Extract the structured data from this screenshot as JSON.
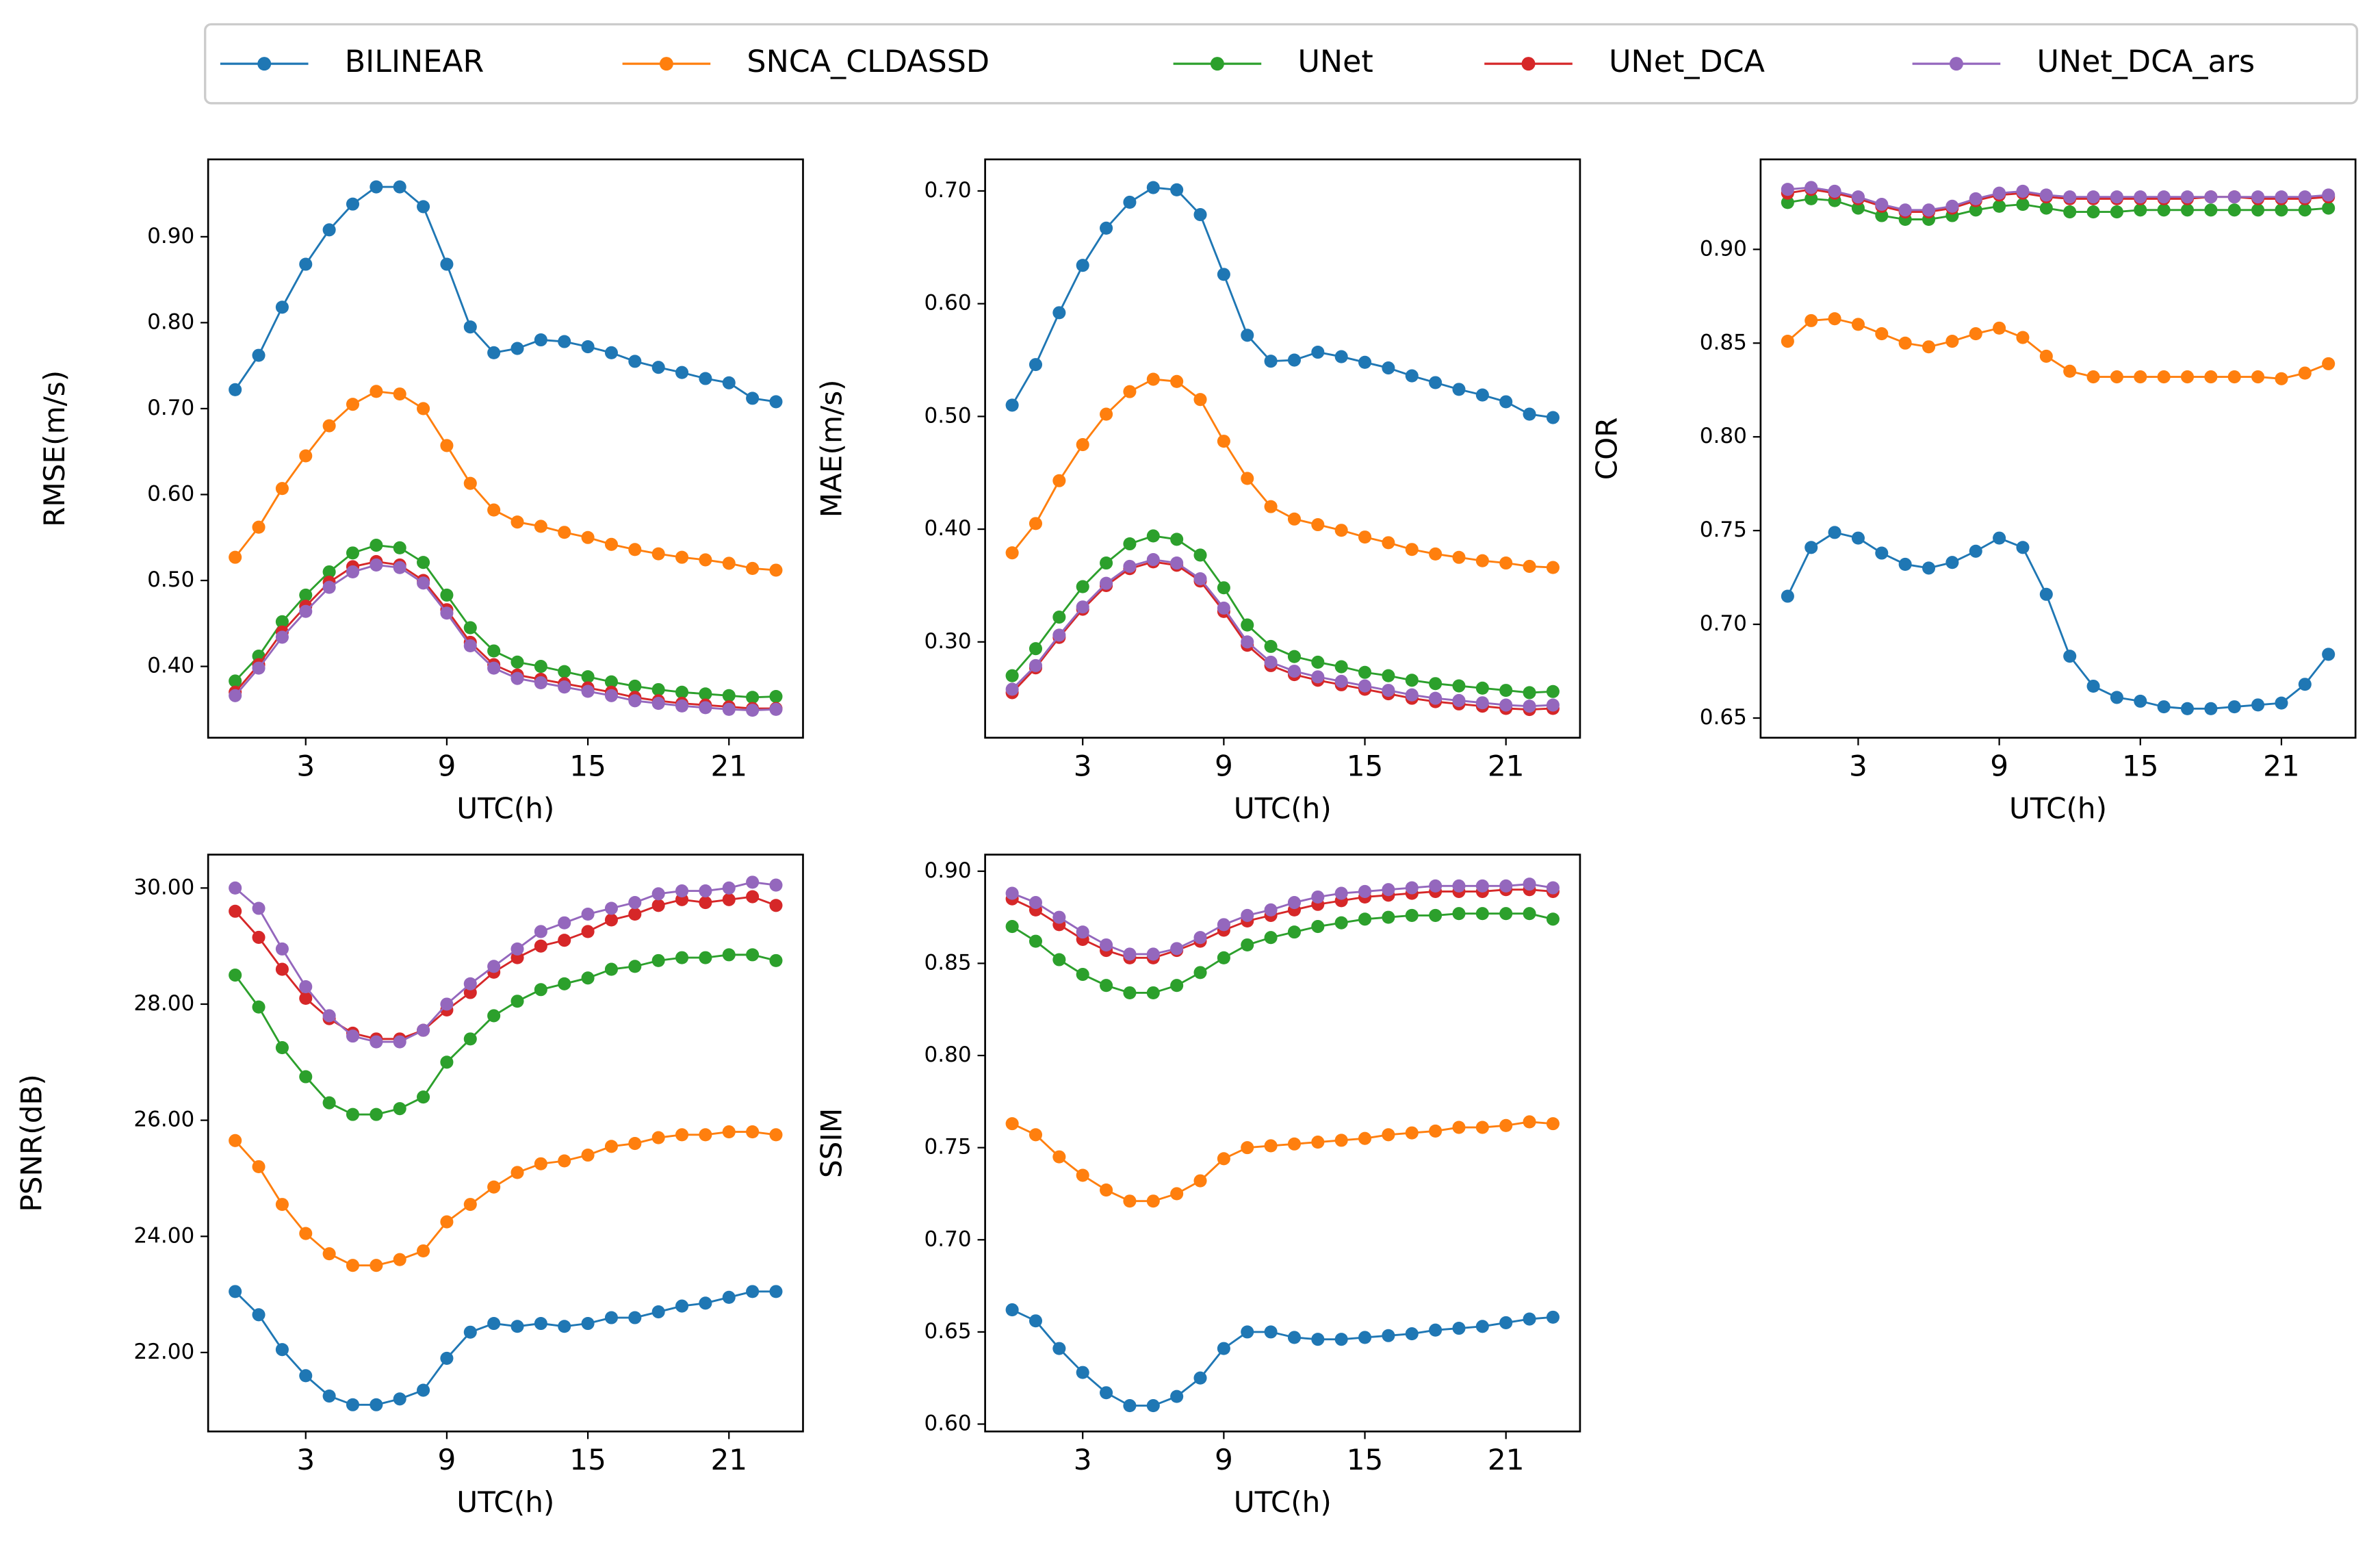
{
  "chart_data": [
    {
      "type": "line",
      "xlabel": "UTC(h)",
      "ylabel": "RMSE(m/s)",
      "legend": "top",
      "x": [
        0,
        1,
        2,
        3,
        4,
        5,
        6,
        7,
        8,
        9,
        10,
        11,
        12,
        13,
        14,
        15,
        16,
        17,
        18,
        19,
        20,
        21,
        22,
        23
      ],
      "xlim": [
        -1.15,
        24.15
      ],
      "xticks": [
        3,
        9,
        15,
        21
      ],
      "ylim": [
        0.317,
        0.99
      ],
      "yticks": [
        {
          "value": 0.4,
          "label": "0.40"
        },
        {
          "value": 0.5,
          "label": "0.50"
        },
        {
          "value": 0.6,
          "label": "0.60"
        },
        {
          "value": 0.7,
          "label": "0.70"
        },
        {
          "value": 0.8,
          "label": "0.80"
        },
        {
          "value": 0.9,
          "label": "0.90"
        }
      ],
      "series": [
        {
          "name": "BILINEAR",
          "color": "#1f77b4",
          "values": [
            0.722,
            0.762,
            0.818,
            0.868,
            0.908,
            0.938,
            0.958,
            0.958,
            0.935,
            0.868,
            0.795,
            0.765,
            0.77,
            0.78,
            0.778,
            0.772,
            0.765,
            0.755,
            0.748,
            0.742,
            0.735,
            0.73,
            0.712,
            0.708
          ]
        },
        {
          "name": "SNCA_CLDASSD",
          "color": "#ff7f0e",
          "values": [
            0.527,
            0.562,
            0.607,
            0.645,
            0.68,
            0.705,
            0.72,
            0.717,
            0.7,
            0.657,
            0.613,
            0.582,
            0.568,
            0.563,
            0.556,
            0.55,
            0.542,
            0.536,
            0.531,
            0.527,
            0.524,
            0.52,
            0.514,
            0.512
          ]
        },
        {
          "name": "UNet",
          "color": "#2ca02c",
          "values": [
            0.383,
            0.412,
            0.452,
            0.483,
            0.51,
            0.532,
            0.541,
            0.538,
            0.521,
            0.483,
            0.445,
            0.418,
            0.405,
            0.4,
            0.394,
            0.388,
            0.382,
            0.377,
            0.373,
            0.37,
            0.368,
            0.366,
            0.364,
            0.365
          ]
        },
        {
          "name": "UNet_DCA",
          "color": "#d62728",
          "values": [
            0.37,
            0.402,
            0.44,
            0.47,
            0.498,
            0.516,
            0.522,
            0.518,
            0.5,
            0.466,
            0.428,
            0.402,
            0.39,
            0.385,
            0.38,
            0.375,
            0.37,
            0.364,
            0.36,
            0.357,
            0.355,
            0.353,
            0.351,
            0.351
          ]
        },
        {
          "name": "UNet_DCA_ars",
          "color": "#9467bd",
          "values": [
            0.366,
            0.398,
            0.434,
            0.464,
            0.492,
            0.51,
            0.518,
            0.515,
            0.497,
            0.462,
            0.424,
            0.398,
            0.386,
            0.381,
            0.376,
            0.371,
            0.366,
            0.36,
            0.357,
            0.354,
            0.352,
            0.35,
            0.349,
            0.35
          ]
        }
      ]
    },
    {
      "type": "line",
      "xlabel": "UTC(h)",
      "ylabel": "MAE(m/s)",
      "x": [
        0,
        1,
        2,
        3,
        4,
        5,
        6,
        7,
        8,
        9,
        10,
        11,
        12,
        13,
        14,
        15,
        16,
        17,
        18,
        19,
        20,
        21,
        22,
        23
      ],
      "xlim": [
        -1.15,
        24.15
      ],
      "xticks": [
        3,
        9,
        15,
        21
      ],
      "ylim": [
        0.215,
        0.728
      ],
      "yticks": [
        {
          "value": 0.3,
          "label": "0.30"
        },
        {
          "value": 0.4,
          "label": "0.40"
        },
        {
          "value": 0.5,
          "label": "0.50"
        },
        {
          "value": 0.6,
          "label": "0.60"
        },
        {
          "value": 0.7,
          "label": "0.70"
        }
      ],
      "series": [
        {
          "name": "BILINEAR",
          "color": "#1f77b4",
          "values": [
            0.51,
            0.546,
            0.592,
            0.634,
            0.667,
            0.69,
            0.703,
            0.701,
            0.679,
            0.626,
            0.572,
            0.549,
            0.55,
            0.557,
            0.553,
            0.548,
            0.543,
            0.536,
            0.53,
            0.524,
            0.519,
            0.513,
            0.502,
            0.499
          ]
        },
        {
          "name": "SNCA_CLDASSD",
          "color": "#ff7f0e",
          "values": [
            0.379,
            0.405,
            0.443,
            0.475,
            0.502,
            0.522,
            0.533,
            0.531,
            0.515,
            0.478,
            0.445,
            0.42,
            0.409,
            0.404,
            0.399,
            0.393,
            0.388,
            0.382,
            0.378,
            0.375,
            0.372,
            0.37,
            0.367,
            0.366
          ]
        },
        {
          "name": "UNet",
          "color": "#2ca02c",
          "values": [
            0.27,
            0.294,
            0.322,
            0.349,
            0.37,
            0.387,
            0.394,
            0.391,
            0.377,
            0.348,
            0.315,
            0.296,
            0.287,
            0.282,
            0.278,
            0.273,
            0.27,
            0.266,
            0.263,
            0.261,
            0.259,
            0.257,
            0.255,
            0.256
          ]
        },
        {
          "name": "UNet_DCA",
          "color": "#d62728",
          "values": [
            0.255,
            0.277,
            0.304,
            0.329,
            0.35,
            0.365,
            0.371,
            0.368,
            0.354,
            0.327,
            0.297,
            0.279,
            0.271,
            0.266,
            0.262,
            0.258,
            0.254,
            0.25,
            0.247,
            0.245,
            0.243,
            0.241,
            0.24,
            0.241
          ]
        },
        {
          "name": "UNet_DCA_ars",
          "color": "#9467bd",
          "values": [
            0.258,
            0.279,
            0.306,
            0.331,
            0.352,
            0.367,
            0.373,
            0.37,
            0.356,
            0.33,
            0.3,
            0.282,
            0.274,
            0.269,
            0.265,
            0.261,
            0.257,
            0.253,
            0.25,
            0.248,
            0.246,
            0.244,
            0.243,
            0.244
          ]
        }
      ]
    },
    {
      "type": "line",
      "xlabel": "UTC(h)",
      "ylabel": "COR",
      "x": [
        0,
        1,
        2,
        3,
        4,
        5,
        6,
        7,
        8,
        9,
        10,
        11,
        12,
        13,
        14,
        15,
        16,
        17,
        18,
        19,
        20,
        21,
        22,
        23
      ],
      "xlim": [
        -1.15,
        24.15
      ],
      "xticks": [
        3,
        9,
        15,
        21
      ],
      "ylim": [
        0.6395,
        0.948
      ],
      "yticks": [
        {
          "value": 0.65,
          "label": "0.65"
        },
        {
          "value": 0.7,
          "label": "0.70"
        },
        {
          "value": 0.75,
          "label": "0.75"
        },
        {
          "value": 0.8,
          "label": "0.80"
        },
        {
          "value": 0.85,
          "label": "0.85"
        },
        {
          "value": 0.9,
          "label": "0.90"
        }
      ],
      "series": [
        {
          "name": "BILINEAR",
          "color": "#1f77b4",
          "values": [
            0.715,
            0.741,
            0.749,
            0.746,
            0.738,
            0.732,
            0.73,
            0.733,
            0.739,
            0.746,
            0.741,
            0.716,
            0.683,
            0.667,
            0.661,
            0.659,
            0.656,
            0.655,
            0.655,
            0.656,
            0.657,
            0.658,
            0.668,
            0.684
          ]
        },
        {
          "name": "SNCA_CLDASSD",
          "color": "#ff7f0e",
          "values": [
            0.851,
            0.862,
            0.863,
            0.86,
            0.855,
            0.85,
            0.848,
            0.851,
            0.855,
            0.858,
            0.853,
            0.843,
            0.835,
            0.832,
            0.832,
            0.832,
            0.832,
            0.832,
            0.832,
            0.832,
            0.832,
            0.831,
            0.834,
            0.839
          ]
        },
        {
          "name": "UNet",
          "color": "#2ca02c",
          "values": [
            0.925,
            0.927,
            0.926,
            0.922,
            0.918,
            0.916,
            0.916,
            0.918,
            0.921,
            0.923,
            0.924,
            0.922,
            0.92,
            0.92,
            0.92,
            0.921,
            0.921,
            0.921,
            0.921,
            0.921,
            0.921,
            0.921,
            0.921,
            0.922
          ]
        },
        {
          "name": "UNet_DCA",
          "color": "#d62728",
          "values": [
            0.93,
            0.932,
            0.93,
            0.927,
            0.923,
            0.92,
            0.92,
            0.922,
            0.926,
            0.929,
            0.93,
            0.928,
            0.927,
            0.927,
            0.927,
            0.927,
            0.927,
            0.927,
            0.928,
            0.928,
            0.927,
            0.927,
            0.927,
            0.928
          ]
        },
        {
          "name": "UNet_DCA_ars",
          "color": "#9467bd",
          "values": [
            0.932,
            0.933,
            0.931,
            0.928,
            0.924,
            0.921,
            0.921,
            0.923,
            0.927,
            0.93,
            0.931,
            0.929,
            0.928,
            0.928,
            0.928,
            0.928,
            0.928,
            0.928,
            0.928,
            0.928,
            0.928,
            0.928,
            0.928,
            0.929
          ]
        }
      ]
    },
    {
      "type": "line",
      "xlabel": "UTC(h)",
      "ylabel": "PSNR(dB)",
      "x": [
        0,
        1,
        2,
        3,
        4,
        5,
        6,
        7,
        8,
        9,
        10,
        11,
        12,
        13,
        14,
        15,
        16,
        17,
        18,
        19,
        20,
        21,
        22,
        23
      ],
      "xlim": [
        -1.15,
        24.15
      ],
      "xticks": [
        3,
        9,
        15,
        21
      ],
      "ylim": [
        20.64,
        30.575
      ],
      "yticks": [
        {
          "value": 22,
          "label": "22.00"
        },
        {
          "value": 24,
          "label": "24.00"
        },
        {
          "value": 26,
          "label": "26.00"
        },
        {
          "value": 28,
          "label": "28.00"
        },
        {
          "value": 30,
          "label": "30.00"
        }
      ],
      "series": [
        {
          "name": "BILINEAR",
          "color": "#1f77b4",
          "values": [
            23.05,
            22.65,
            22.05,
            21.6,
            21.25,
            21.1,
            21.1,
            21.2,
            21.35,
            21.9,
            22.35,
            22.5,
            22.45,
            22.5,
            22.45,
            22.5,
            22.6,
            22.6,
            22.7,
            22.8,
            22.85,
            22.95,
            23.05,
            23.05
          ]
        },
        {
          "name": "SNCA_CLDASSD",
          "color": "#ff7f0e",
          "values": [
            25.65,
            25.2,
            24.55,
            24.05,
            23.7,
            23.5,
            23.5,
            23.6,
            23.75,
            24.25,
            24.55,
            24.85,
            25.1,
            25.25,
            25.3,
            25.4,
            25.55,
            25.6,
            25.7,
            25.75,
            25.75,
            25.8,
            25.8,
            25.75
          ]
        },
        {
          "name": "UNet",
          "color": "#2ca02c",
          "values": [
            28.5,
            27.95,
            27.25,
            26.75,
            26.3,
            26.1,
            26.1,
            26.2,
            26.4,
            27.0,
            27.4,
            27.8,
            28.05,
            28.25,
            28.35,
            28.45,
            28.6,
            28.65,
            28.75,
            28.8,
            28.8,
            28.85,
            28.85,
            28.75
          ]
        },
        {
          "name": "UNet_DCA",
          "color": "#d62728",
          "values": [
            29.6,
            29.15,
            28.6,
            28.1,
            27.75,
            27.5,
            27.4,
            27.4,
            27.55,
            27.9,
            28.2,
            28.55,
            28.8,
            29.0,
            29.1,
            29.25,
            29.45,
            29.55,
            29.7,
            29.8,
            29.75,
            29.8,
            29.85,
            29.7
          ]
        },
        {
          "name": "UNet_DCA_ars",
          "color": "#9467bd",
          "values": [
            30.0,
            29.65,
            28.95,
            28.3,
            27.8,
            27.45,
            27.35,
            27.35,
            27.55,
            28.0,
            28.35,
            28.65,
            28.95,
            29.25,
            29.4,
            29.55,
            29.65,
            29.75,
            29.9,
            29.95,
            29.95,
            30.0,
            30.1,
            30.05
          ]
        }
      ]
    },
    {
      "type": "line",
      "xlabel": "UTC(h)",
      "ylabel": "SSIM",
      "x": [
        0,
        1,
        2,
        3,
        4,
        5,
        6,
        7,
        8,
        9,
        10,
        11,
        12,
        13,
        14,
        15,
        16,
        17,
        18,
        19,
        20,
        21,
        22,
        23
      ],
      "xlim": [
        -1.15,
        24.15
      ],
      "xticks": [
        3,
        9,
        15,
        21
      ],
      "ylim": [
        0.596,
        0.909
      ],
      "yticks": [
        {
          "value": 0.6,
          "label": "0.60"
        },
        {
          "value": 0.65,
          "label": "0.65"
        },
        {
          "value": 0.7,
          "label": "0.70"
        },
        {
          "value": 0.75,
          "label": "0.75"
        },
        {
          "value": 0.8,
          "label": "0.80"
        },
        {
          "value": 0.85,
          "label": "0.85"
        },
        {
          "value": 0.9,
          "label": "0.90"
        }
      ],
      "series": [
        {
          "name": "BILINEAR",
          "color": "#1f77b4",
          "values": [
            0.662,
            0.656,
            0.641,
            0.628,
            0.617,
            0.61,
            0.61,
            0.615,
            0.625,
            0.641,
            0.65,
            0.65,
            0.647,
            0.646,
            0.646,
            0.647,
            0.648,
            0.649,
            0.651,
            0.652,
            0.653,
            0.655,
            0.657,
            0.658
          ]
        },
        {
          "name": "SNCA_CLDASSD",
          "color": "#ff7f0e",
          "values": [
            0.763,
            0.757,
            0.745,
            0.735,
            0.727,
            0.721,
            0.721,
            0.725,
            0.732,
            0.744,
            0.75,
            0.751,
            0.752,
            0.753,
            0.754,
            0.755,
            0.757,
            0.758,
            0.759,
            0.761,
            0.761,
            0.762,
            0.764,
            0.763
          ]
        },
        {
          "name": "UNet",
          "color": "#2ca02c",
          "values": [
            0.87,
            0.862,
            0.852,
            0.844,
            0.838,
            0.834,
            0.834,
            0.838,
            0.845,
            0.853,
            0.86,
            0.864,
            0.867,
            0.87,
            0.872,
            0.874,
            0.875,
            0.876,
            0.876,
            0.877,
            0.877,
            0.877,
            0.877,
            0.874
          ]
        },
        {
          "name": "UNet_DCA",
          "color": "#d62728",
          "values": [
            0.885,
            0.879,
            0.871,
            0.863,
            0.857,
            0.853,
            0.853,
            0.857,
            0.862,
            0.868,
            0.873,
            0.876,
            0.879,
            0.882,
            0.884,
            0.886,
            0.887,
            0.888,
            0.889,
            0.889,
            0.889,
            0.89,
            0.89,
            0.889
          ]
        },
        {
          "name": "UNet_DCA_ars",
          "color": "#9467bd",
          "values": [
            0.888,
            0.883,
            0.875,
            0.867,
            0.86,
            0.855,
            0.855,
            0.858,
            0.864,
            0.871,
            0.876,
            0.879,
            0.883,
            0.886,
            0.888,
            0.889,
            0.89,
            0.891,
            0.892,
            0.892,
            0.892,
            0.892,
            0.893,
            0.891
          ]
        }
      ]
    }
  ]
}
